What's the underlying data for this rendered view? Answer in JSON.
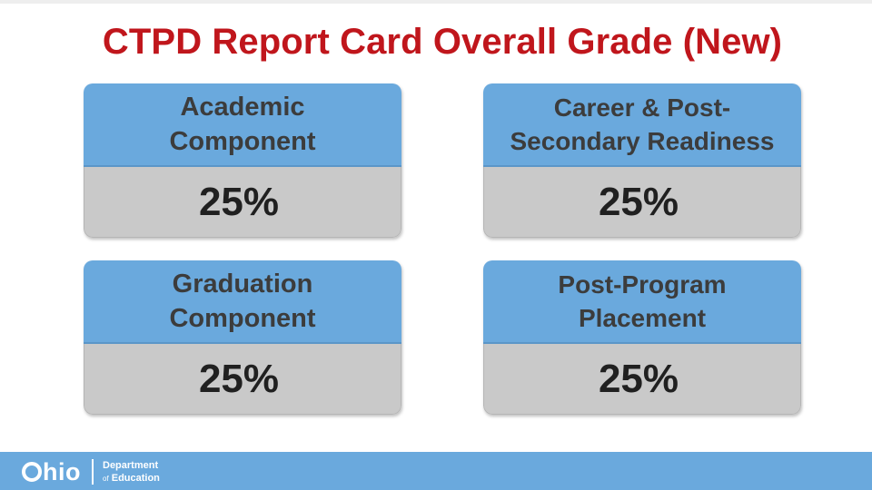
{
  "slide": {
    "title": "CTPD Report Card Overall Grade (New)"
  },
  "cards": [
    {
      "heading": "Academic\nComponent",
      "value": "25%"
    },
    {
      "heading": "Career & Post-\nSecondary Readiness",
      "value": "25%"
    },
    {
      "heading": "Graduation\nComponent",
      "value": "25%"
    },
    {
      "heading": "Post-Program\nPlacement",
      "value": "25%"
    }
  ],
  "footer": {
    "logo_word": "hio",
    "dept_line1": "Department",
    "dept_of": "of",
    "dept_line2": "Education"
  },
  "colors": {
    "title": "#c0161c",
    "card_header": "#6aa9dd",
    "card_body": "#c9c9c9",
    "footer": "#6aa9dd"
  }
}
